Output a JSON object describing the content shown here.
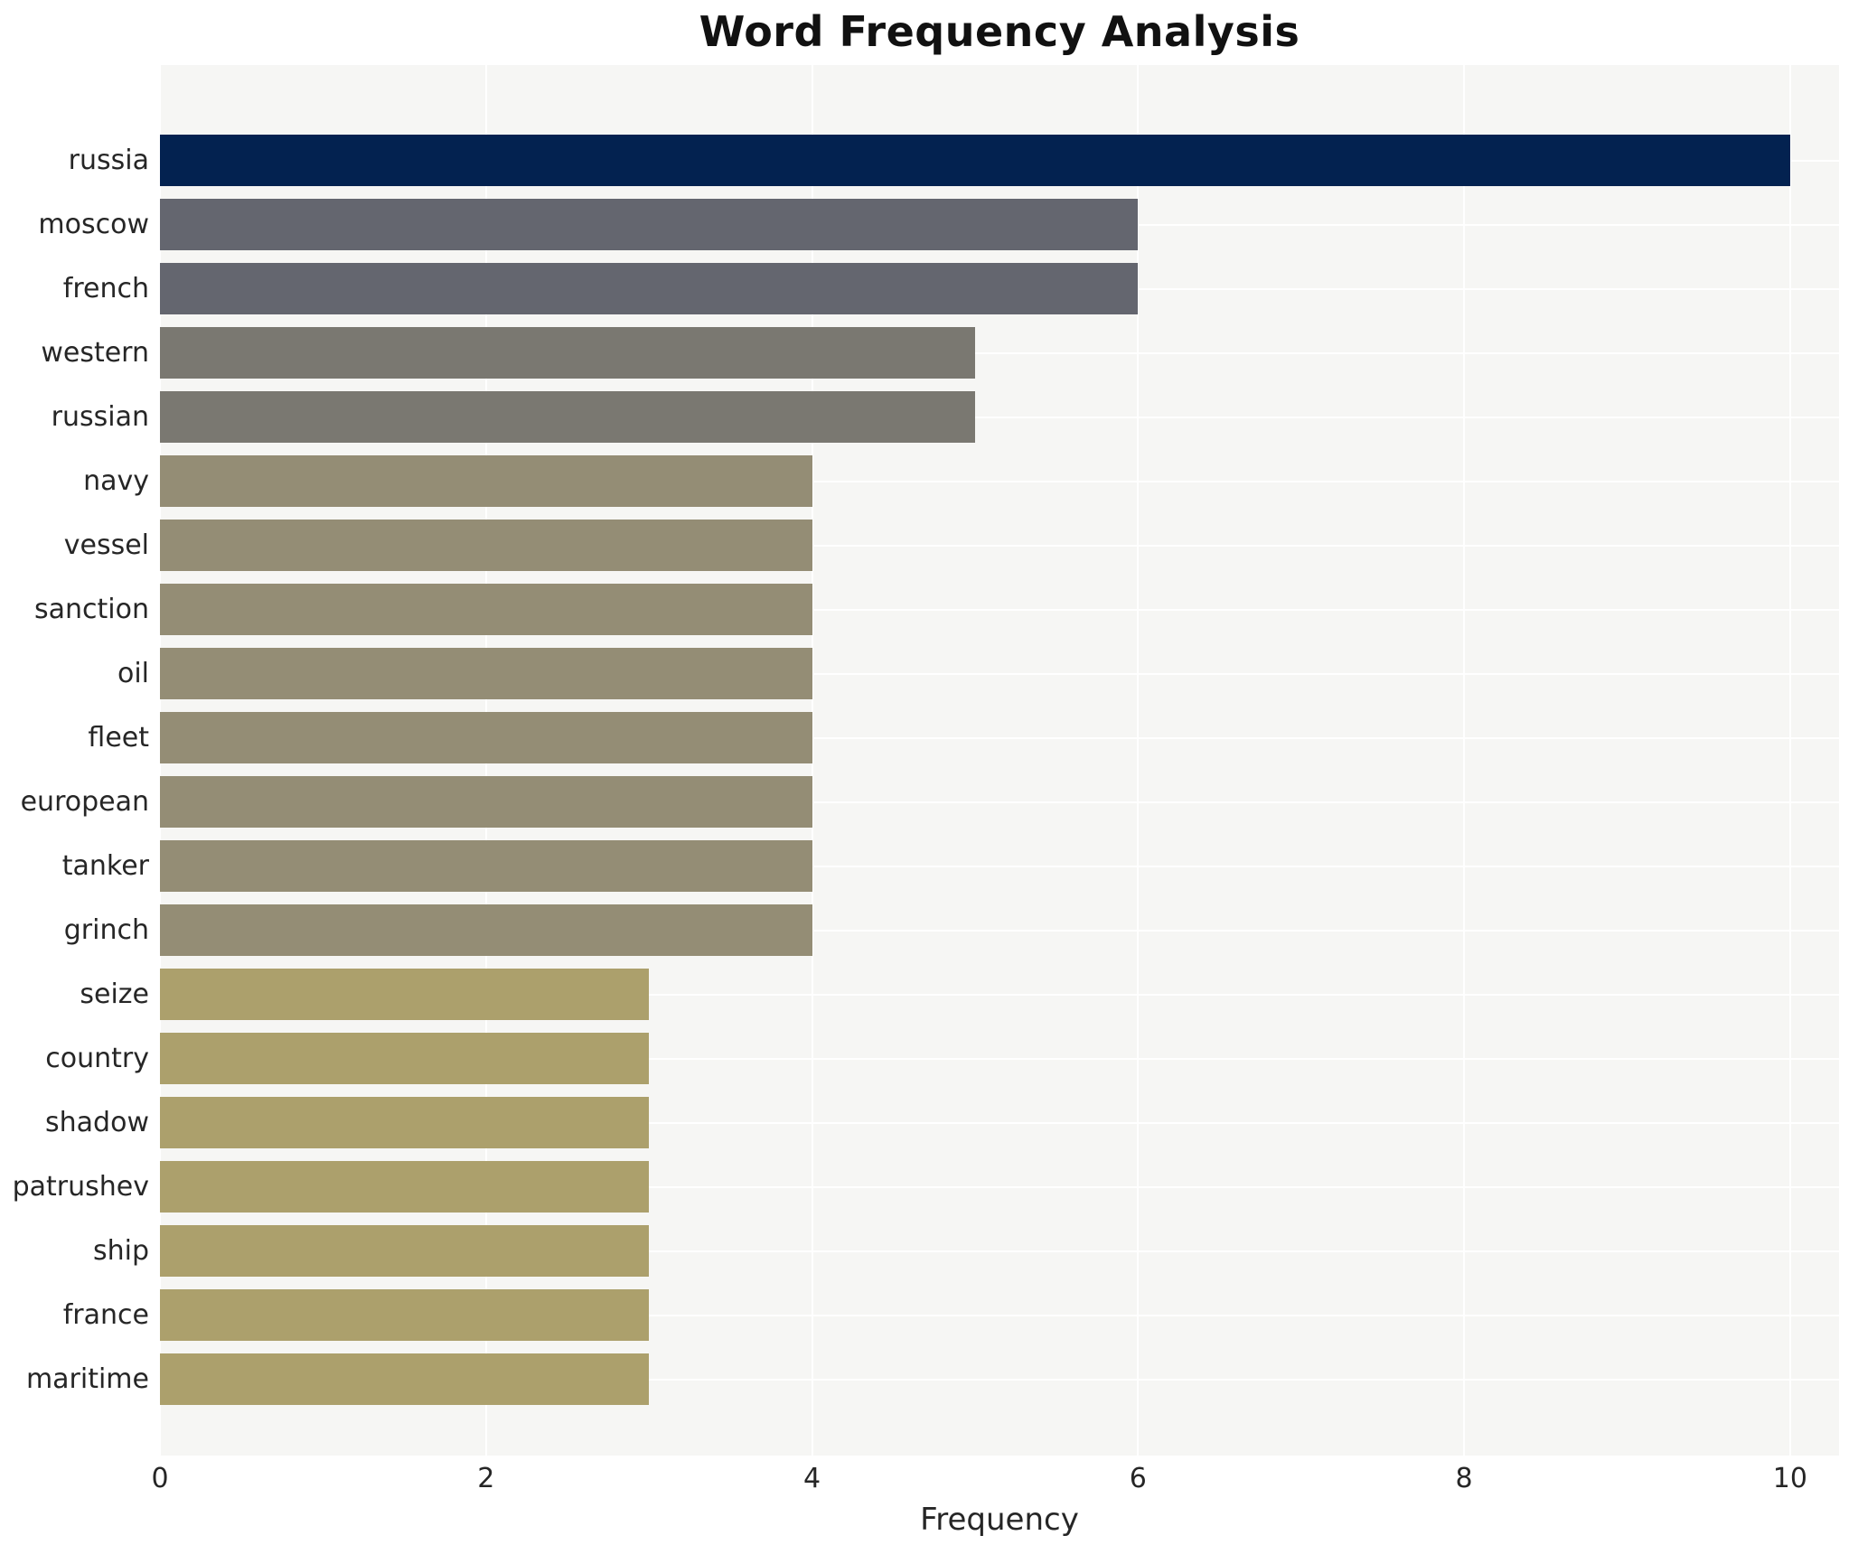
{
  "title": "Word Frequency Analysis",
  "chart_data": {
    "type": "bar",
    "orientation": "horizontal",
    "title": "Word Frequency Analysis",
    "xlabel": "Frequency",
    "ylabel": "",
    "categories": [
      "russia",
      "moscow",
      "french",
      "western",
      "russian",
      "navy",
      "vessel",
      "sanction",
      "oil",
      "fleet",
      "european",
      "tanker",
      "grinch",
      "seize",
      "country",
      "shadow",
      "patrushev",
      "ship",
      "france",
      "maritime"
    ],
    "values": [
      10,
      6,
      6,
      5,
      5,
      4,
      4,
      4,
      4,
      4,
      4,
      4,
      4,
      3,
      3,
      3,
      3,
      3,
      3,
      3
    ],
    "bar_colors": [
      "#032250",
      "#64666f",
      "#64666f",
      "#7a7871",
      "#7a7871",
      "#948d75",
      "#948d75",
      "#948d75",
      "#948d75",
      "#948d75",
      "#948d75",
      "#948d75",
      "#948d75",
      "#aca06c",
      "#aca06c",
      "#aca06c",
      "#aca06c",
      "#aca06c",
      "#aca06c",
      "#aca06c"
    ],
    "x_ticks": [
      0,
      2,
      4,
      6,
      8,
      10
    ],
    "xlim": [
      0,
      10.3
    ],
    "grid": true,
    "legend": "none",
    "plot_bg_color": "#f6f6f4",
    "grid_color": "#ffffff",
    "text_color": "#262626"
  }
}
